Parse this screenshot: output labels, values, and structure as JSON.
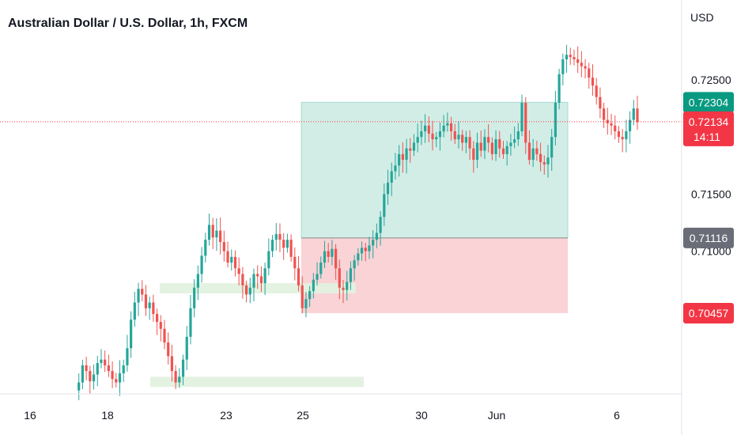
{
  "header": {
    "title": "Australian Dollar / U.S. Dollar, 1h, FXCM",
    "currency": "USD"
  },
  "colors": {
    "up": "#26a69a",
    "down": "#ef5350",
    "profit_zone": "#d2ede6",
    "loss_zone": "#f9d3d6",
    "demand_zone": "#e3f1df",
    "badge_green": "#089981",
    "badge_red": "#f23645",
    "badge_gray": "#6a6d78",
    "last_price_line": "#f23645"
  },
  "chart_data": {
    "type": "candlestick",
    "symbol": "AUDUSD",
    "interval": "1h",
    "source": "FXCM",
    "x_tick_labels": [
      "16",
      "18",
      "23",
      "25",
      "30",
      "Jun",
      "6"
    ],
    "y_tick_labels": [
      "0.72500",
      "0.71500",
      "0.71000"
    ],
    "ylim": [
      0.6975,
      0.732
    ],
    "position": {
      "type": "long",
      "entry": 0.71116,
      "take_profit": 0.72304,
      "stop_loss": 0.70457
    },
    "price_badges": [
      {
        "label": "0.72304",
        "value": 0.72304,
        "color": "green"
      },
      {
        "label": "0.72134",
        "value": 0.72134,
        "color": "red",
        "sub": "14:11"
      },
      {
        "label": "0.71116",
        "value": 0.71116,
        "color": "gray"
      },
      {
        "label": "0.70457",
        "value": 0.70457,
        "color": "red"
      }
    ],
    "last_price": 0.72134,
    "demand_zones": [
      {
        "from": 0.7072,
        "to": 0.7063
      },
      {
        "from": 0.699,
        "to": 0.6981
      }
    ],
    "price_path": [
      0.6978,
      0.6985,
      0.7,
      0.6995,
      0.6986,
      0.6992,
      0.7002,
      0.7005,
      0.7,
      0.6995,
      0.6988,
      0.6985,
      0.6993,
      0.7,
      0.7015,
      0.704,
      0.7055,
      0.7067,
      0.7062,
      0.705,
      0.7055,
      0.7045,
      0.7038,
      0.7032,
      0.702,
      0.7008,
      0.6995,
      0.6985,
      0.699,
      0.7005,
      0.7025,
      0.705,
      0.7068,
      0.708,
      0.7096,
      0.711,
      0.7123,
      0.7112,
      0.7118,
      0.7108,
      0.71,
      0.709,
      0.7095,
      0.7085,
      0.708,
      0.707,
      0.7062,
      0.7068,
      0.708,
      0.7078,
      0.7072,
      0.7085,
      0.71,
      0.711,
      0.7115,
      0.711,
      0.7103,
      0.711,
      0.7095,
      0.7085,
      0.707,
      0.705,
      0.7058,
      0.7065,
      0.7075,
      0.708,
      0.709,
      0.71,
      0.7095,
      0.7102,
      0.7085,
      0.7068,
      0.7066,
      0.7073,
      0.7085,
      0.7092,
      0.7098,
      0.7103,
      0.71,
      0.7105,
      0.711,
      0.7116,
      0.713,
      0.715,
      0.716,
      0.717,
      0.7175,
      0.7185,
      0.718,
      0.719,
      0.7188,
      0.7195,
      0.72,
      0.7205,
      0.721,
      0.7203,
      0.7198,
      0.72,
      0.7205,
      0.721,
      0.7212,
      0.7205,
      0.7198,
      0.7202,
      0.7195,
      0.72,
      0.719,
      0.718,
      0.7195,
      0.7188,
      0.72,
      0.7195,
      0.7185,
      0.7198,
      0.719,
      0.7185,
      0.7192,
      0.7195,
      0.7198,
      0.7205,
      0.723,
      0.7195,
      0.718,
      0.719,
      0.7185,
      0.7178,
      0.7176,
      0.7182,
      0.72,
      0.723,
      0.7255,
      0.7268,
      0.7272,
      0.727,
      0.7268,
      0.7265,
      0.7262,
      0.726,
      0.7252,
      0.7245,
      0.7235,
      0.7225,
      0.7215,
      0.7212,
      0.721,
      0.7205,
      0.72,
      0.7198,
      0.7205,
      0.7215,
      0.7225,
      0.7213
    ]
  }
}
